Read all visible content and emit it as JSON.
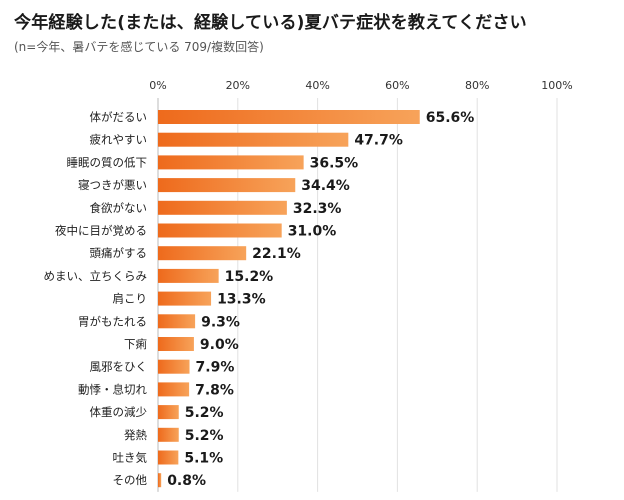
{
  "chart_data": {
    "type": "bar",
    "orientation": "horizontal",
    "title": "今年経験した(または、経験している)夏バテ症状を教えてください",
    "subtitle": "(n=今年、暑バテを感じている 709/複数回答)",
    "xlabel": "",
    "ylabel": "",
    "xlim": [
      0,
      100
    ],
    "grid": true,
    "tick_labels": [
      "0%",
      "20%",
      "40%",
      "60%",
      "80%",
      "100%"
    ],
    "tick_values": [
      0,
      20,
      40,
      60,
      80,
      100
    ],
    "value_suffix": "%",
    "categories": [
      "体がだるい",
      "疲れやすい",
      "睡眠の質の低下",
      "寝つきが悪い",
      "食欲がない",
      "夜中に目が覚める",
      "頭痛がする",
      "めまい、立ちくらみ",
      "肩こり",
      "胃がもたれる",
      "下痢",
      "風邪をひく",
      "動悸・息切れ",
      "体重の減少",
      "発熱",
      "吐き気",
      "その他"
    ],
    "values": [
      65.6,
      47.7,
      36.5,
      34.4,
      32.3,
      31.0,
      22.1,
      15.2,
      13.3,
      9.3,
      9.0,
      7.9,
      7.8,
      5.2,
      5.2,
      5.1,
      0.8
    ],
    "colors": {
      "bar_start": "#ee6a1c",
      "bar_end": "#f7a35a",
      "grid": "#e2e2e2",
      "axis": "#bbbbbb"
    }
  }
}
